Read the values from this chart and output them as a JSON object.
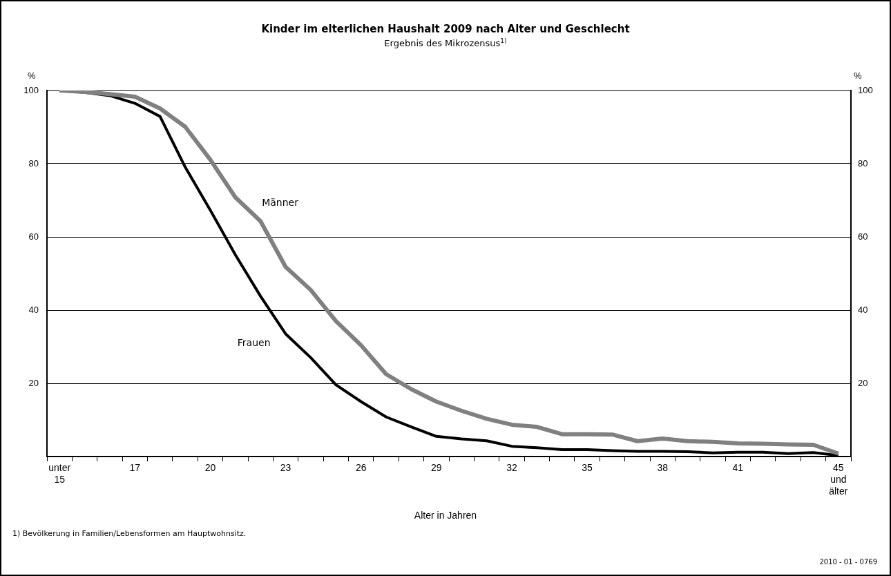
{
  "chart_data": {
    "type": "line",
    "title": "Kinder im elterlichen Haushalt 2009 nach Alter und Geschlecht",
    "subtitle": "Ergebnis des Mikrozensus$^{1)}$",
    "xlabel": "Alter in Jahren",
    "ylabel": "%",
    "y2label": "%",
    "categories": [
      "unter 15",
      null,
      null,
      "17",
      null,
      null,
      "20",
      null,
      null,
      "23",
      null,
      null,
      "26",
      null,
      null,
      "29",
      null,
      null,
      "32",
      null,
      null,
      "35",
      null,
      null,
      "38",
      null,
      null,
      "41",
      null,
      null,
      null,
      "45 und älter"
    ],
    "series": [
      {
        "name": "Männer",
        "color": "#808080",
        "values": [
          100,
          99.6,
          99.0,
          98.3,
          95.1,
          90.1,
          81.1,
          70.8,
          64.3,
          51.8,
          45.5,
          37.0,
          30.4,
          22.5,
          18.4,
          15.0,
          12.5,
          10.3,
          8.7,
          8.1,
          6.1,
          6.1,
          6.0,
          4.2,
          4.9,
          4.2,
          4.0,
          3.6,
          3.5,
          3.3,
          3.2,
          0.8
        ]
      },
      {
        "name": "Frauen",
        "color": "#000000",
        "values": [
          100,
          99.5,
          98.6,
          96.5,
          92.9,
          79.1,
          67.3,
          55.1,
          43.8,
          33.5,
          27.0,
          19.6,
          15.0,
          10.8,
          8.1,
          5.5,
          4.8,
          4.3,
          2.8,
          2.4,
          1.9,
          1.9,
          1.6,
          1.4,
          1.4,
          1.3,
          1.0,
          1.2,
          1.2,
          0.8,
          1.1,
          0.3
        ]
      }
    ],
    "ylim": [
      0,
      100
    ],
    "yticks": [
      20,
      40,
      60,
      80,
      100
    ],
    "y2lim": [
      0,
      100
    ],
    "y2ticks": [
      20,
      40,
      60,
      80,
      100
    ],
    "grid": "y",
    "legend": false,
    "marker": "none",
    "line_style": "solid",
    "annotations": [
      "1) Bevölkerung in Familien/Lebensformen am Hauptwohnsitz.",
      "2010 - 01 - 0769"
    ]
  }
}
